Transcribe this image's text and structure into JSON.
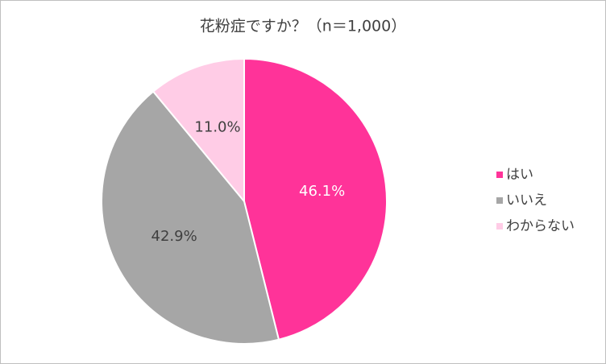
{
  "chart_data": {
    "type": "pie",
    "title": "花粉症ですか？（n＝1,000）",
    "categories": [
      "はい",
      "いいえ",
      "わからない"
    ],
    "values": [
      46.1,
      42.9,
      11.0
    ],
    "value_labels": [
      "46.1%",
      "42.9%",
      "11.0%"
    ],
    "colors": [
      "#ff3399",
      "#a6a6a6",
      "#ffcce6"
    ],
    "legend": "right"
  }
}
